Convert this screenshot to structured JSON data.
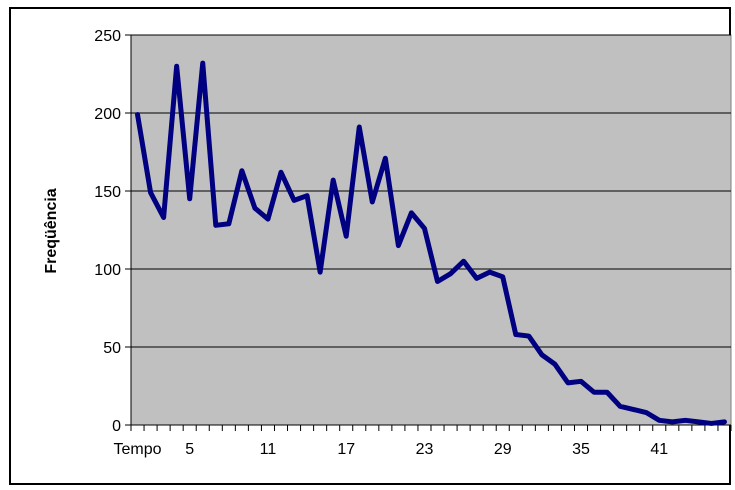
{
  "chart_data": {
    "type": "line",
    "title": "",
    "xlabel": "",
    "ylabel": "Freqüência",
    "first_x_tick_label": "Tempo",
    "x": [
      1,
      2,
      3,
      4,
      5,
      6,
      7,
      8,
      9,
      10,
      11,
      12,
      13,
      14,
      15,
      16,
      17,
      18,
      19,
      20,
      21,
      22,
      23,
      24,
      25,
      26,
      27,
      28,
      29,
      30,
      31,
      32,
      33,
      34,
      35,
      36,
      37,
      38,
      39,
      40,
      41,
      42,
      43,
      44,
      45,
      46
    ],
    "values": [
      199,
      149,
      133,
      230,
      145,
      232,
      128,
      129,
      163,
      139,
      132,
      162,
      144,
      147,
      98,
      157,
      121,
      191,
      143,
      171,
      115,
      136,
      126,
      92,
      97,
      105,
      94,
      98,
      95,
      58,
      57,
      45,
      39,
      27,
      28,
      21,
      21,
      12,
      10,
      8,
      3,
      2,
      3,
      2,
      1,
      2
    ],
    "x_ticks": [
      {
        "x": 1,
        "label": "Tempo"
      },
      {
        "x": 5,
        "label": "5"
      },
      {
        "x": 11,
        "label": "11"
      },
      {
        "x": 17,
        "label": "17"
      },
      {
        "x": 23,
        "label": "23"
      },
      {
        "x": 29,
        "label": "29"
      },
      {
        "x": 35,
        "label": "35"
      },
      {
        "x": 41,
        "label": "41"
      }
    ],
    "y_ticks": [
      "0",
      "50",
      "100",
      "150",
      "200",
      "250"
    ],
    "ylim": [
      0,
      250
    ],
    "grid": "horizontal",
    "legend": "none",
    "colors": {
      "plot_background": "#c0c0c0",
      "line": "#000080",
      "gridline": "#000000"
    }
  }
}
